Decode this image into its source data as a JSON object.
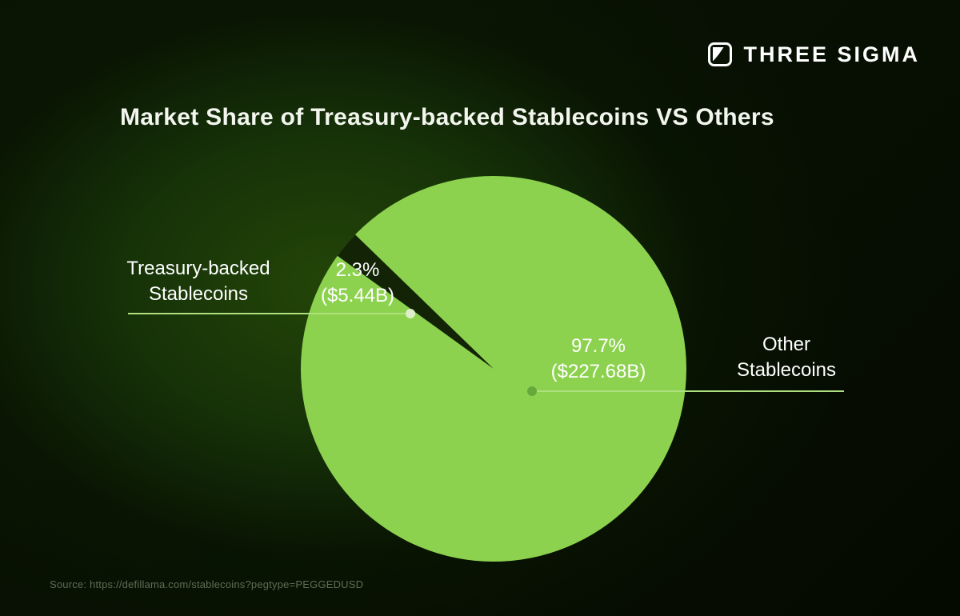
{
  "brand": {
    "name": "THREE SIGMA"
  },
  "title": "Market Share of Treasury-backed Stablecoins VS Others",
  "source": "Source: https://defillama.com/stablecoins?pegtype=PEGGEDUSD",
  "colors": {
    "pie": "#8dd24f",
    "wedge": "#122405",
    "leader": "#aee07f",
    "dot_left": "#ddeec8",
    "dot_right": "#65a93b",
    "text": "#ffffff",
    "muted": "#5d6d55"
  },
  "chart_data": {
    "type": "pie",
    "title": "Market Share of Treasury-backed Stablecoins VS Others",
    "legend_position": "none",
    "slices": [
      {
        "label": "Treasury-backed Stablecoins",
        "label_line1": "Treasury-backed",
        "label_line2": "Stablecoins",
        "percent": 2.3,
        "percent_label": "2.3%",
        "value_billions_usd": 5.44,
        "value_label": "($5.44B)",
        "color": "#122405"
      },
      {
        "label": "Other Stablecoins",
        "label_line1": "Other",
        "label_line2": "Stablecoins",
        "percent": 97.7,
        "percent_label": "97.7%",
        "value_billions_usd": 227.68,
        "value_label": "($227.68B)",
        "color": "#8dd24f"
      }
    ],
    "layout": {
      "wedge_mid_angle_deg": 140,
      "pie_center": [
        617,
        461
      ],
      "pie_radius": 241
    }
  }
}
